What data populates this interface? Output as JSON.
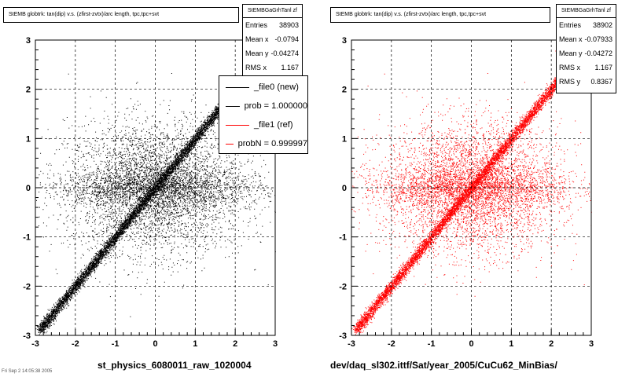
{
  "chart_data": [
    {
      "type": "scatter",
      "title": "StEMB globtrk: tan(dip) v.s. (zfirst-zvtx)/arc length, tpc,tpc+svt",
      "footer": "st_physics_6080011_raw_1020004",
      "color": "#000000",
      "xlim": [
        -3,
        3
      ],
      "ylim": [
        -3,
        3
      ],
      "xticks": [
        "-3",
        "-2",
        "-1",
        "0",
        "1",
        "2",
        "3"
      ],
      "yticks": [
        "3",
        "2",
        "1",
        "0",
        "-1",
        "-2",
        "-3"
      ],
      "grid": true,
      "stats": {
        "name": "StEMBGaGrhTanl zf",
        "entries_label": "Entries",
        "entries": "38903",
        "meanx_label": "Mean x",
        "meanx": "-0.0794",
        "meany_label": "Mean y",
        "meany": "-0.04274",
        "rmsx_label": "RMS x",
        "rmsx": "1.167"
      },
      "legend": [
        {
          "label": "_file0 (new)",
          "color": "#000000"
        },
        {
          "label": "prob = 1.000000",
          "color": "#000000"
        },
        {
          "label": "_file1 (ref)",
          "color": "#ff0000"
        },
        {
          "label": "probN = 0.999997",
          "color": "#ff0000"
        }
      ],
      "points": {
        "n_diag": 6000,
        "n_band": 1500,
        "n_cloud": 4500,
        "diag_slope": 1,
        "diag_range": [
          -2.9,
          1.7
        ]
      }
    },
    {
      "type": "scatter",
      "title": "StEMB globtrk: tan(dip) v.s. (zfirst-zvtx)/arc length, tpc,tpc+svt",
      "footer": "dev/daq_sl302.ittf/Sat/year_2005/CuCu62_MinBias/",
      "color": "#ff0000",
      "xlim": [
        -3,
        3
      ],
      "ylim": [
        -3,
        3
      ],
      "xticks": [
        "-3",
        "-2",
        "-1",
        "0",
        "1",
        "2",
        "3"
      ],
      "yticks": [
        "3",
        "2",
        "1",
        "0",
        "-1",
        "-2",
        "-3"
      ],
      "grid": true,
      "stats": {
        "name": "StEMBGaGrhTanl zf",
        "entries_label": "Entries",
        "entries": "38902",
        "meanx_label": "Mean x",
        "meanx": "-0.07933",
        "meany_label": "Mean y",
        "meany": "-0.04272",
        "rmsx_label": "RMS x",
        "rmsx": "1.167",
        "rmsy_label": "RMS y",
        "rmsy": "0.8367"
      },
      "points": {
        "n_diag": 6000,
        "n_band": 1500,
        "n_cloud": 4500,
        "diag_slope": 1,
        "diag_range": [
          -2.9,
          2.3
        ]
      }
    }
  ],
  "corner_text": "Fri Sep 2 14:05:38 2005"
}
